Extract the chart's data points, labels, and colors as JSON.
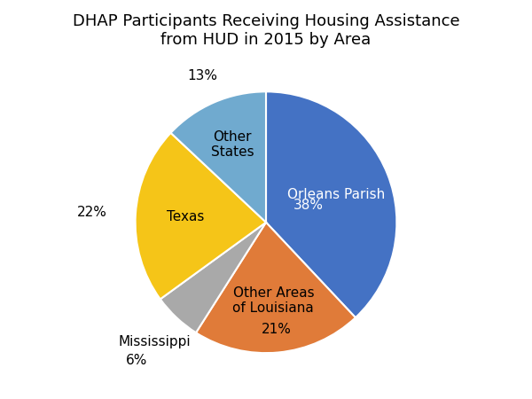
{
  "title": "DHAP Participants Receiving Housing Assistance\nfrom HUD in 2015 by Area",
  "labels": [
    "Orleans Parish",
    "Other Areas\nof Louisiana",
    "Mississippi",
    "Texas",
    "Other\nStates"
  ],
  "values": [
    38,
    21,
    6,
    22,
    13
  ],
  "colors": [
    "#4472C4",
    "#E07B39",
    "#A9A9A9",
    "#F5C518",
    "#70AACF"
  ],
  "startangle": 90,
  "title_fontsize": 13,
  "label_fontsize": 11,
  "pct_fontsize": 11
}
